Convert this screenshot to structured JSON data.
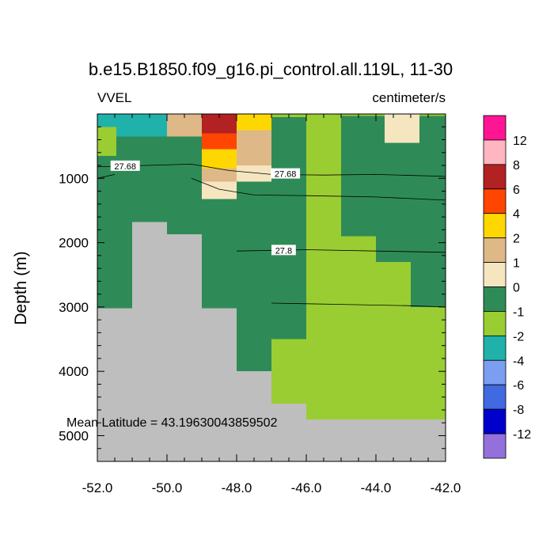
{
  "chart_data": {
    "type": "heatmap",
    "title": "b.e15.B1850.f09_g16.pi_control.all.119L, 11-30",
    "left_label": "VVEL",
    "right_label": "centimeter/s",
    "ylabel": "Depth (m)",
    "xlabel": "",
    "xlim": [
      -52.0,
      -42.0
    ],
    "ylim": [
      5400,
      0
    ],
    "x_ticks": [
      -52.0,
      -50.0,
      -48.0,
      -46.0,
      -44.0,
      -42.0
    ],
    "x_tick_labels": [
      "-52.0",
      "-50.0",
      "-48.0",
      "-46.0",
      "-44.0",
      "-42.0"
    ],
    "y_ticks": [
      1000,
      2000,
      3000,
      4000,
      5000
    ],
    "y_tick_labels": [
      "1000",
      "2000",
      "3000",
      "4000",
      "5000"
    ],
    "annotation": "Mean Latitude = 43.19630043859502",
    "missing_color": "#bebebe",
    "colorbar": {
      "labels": [
        "12",
        "8",
        "6",
        "4",
        "2",
        "1",
        "0",
        "-1",
        "-2",
        "-4",
        "-6",
        "-8",
        "-12"
      ],
      "colors": [
        "#ff1493",
        "#ffb6c1",
        "#b22222",
        "#ff4500",
        "#ffd700",
        "#deb887",
        "#f5e6c0",
        "#2e8b57",
        "#9acd32",
        "#20b2aa",
        "#7b9ef0",
        "#4169e1",
        "#0000cd",
        "#9370db"
      ]
    },
    "cells": [
      {
        "x": [
          -52.0,
          -46.0
        ],
        "y": [
          0,
          5400
        ],
        "v": "0"
      },
      {
        "x": [
          -52.0,
          -51.5
        ],
        "y": [
          0,
          200
        ],
        "v": "-2"
      },
      {
        "x": [
          -51.5,
          -50.0
        ],
        "y": [
          0,
          350
        ],
        "v": "-2"
      },
      {
        "x": [
          -52.0,
          -51.45
        ],
        "y": [
          200,
          650
        ],
        "v": "-1"
      },
      {
        "x": [
          -50.0,
          -49.0
        ],
        "y": [
          0,
          350
        ],
        "v": "2"
      },
      {
        "x": [
          -49.0,
          -48.0
        ],
        "y": [
          0,
          300
        ],
        "v": "8"
      },
      {
        "x": [
          -49.0,
          -48.0
        ],
        "y": [
          300,
          550
        ],
        "v": "6"
      },
      {
        "x": [
          -49.0,
          -48.0
        ],
        "y": [
          550,
          850
        ],
        "v": "4"
      },
      {
        "x": [
          -49.0,
          -48.0
        ],
        "y": [
          850,
          1050
        ],
        "v": "2"
      },
      {
        "x": [
          -49.0,
          -48.0
        ],
        "y": [
          1050,
          1320
        ],
        "v": "1"
      },
      {
        "x": [
          -48.0,
          -47.0
        ],
        "y": [
          0,
          250
        ],
        "v": "4"
      },
      {
        "x": [
          -48.0,
          -47.0
        ],
        "y": [
          250,
          800
        ],
        "v": "2"
      },
      {
        "x": [
          -48.0,
          -47.0
        ],
        "y": [
          800,
          1050
        ],
        "v": "1"
      },
      {
        "x": [
          -47.0,
          -46.0
        ],
        "y": [
          0,
          50
        ],
        "v": "-1"
      },
      {
        "x": [
          -46.0,
          -45.0
        ],
        "y": [
          0,
          50
        ],
        "v": "-1"
      },
      {
        "x": [
          -46.0,
          -45.0
        ],
        "y": [
          50,
          4750
        ],
        "v": "-1"
      },
      {
        "x": [
          -45.0,
          -42.0
        ],
        "y": [
          0,
          30
        ],
        "v": "-1"
      },
      {
        "x": [
          -45.0,
          -42.0
        ],
        "y": [
          30,
          5400
        ],
        "v": "0"
      },
      {
        "x": [
          -43.75,
          -42.75
        ],
        "y": [
          0,
          450
        ],
        "v": "1"
      },
      {
        "x": [
          -45.0,
          -44.0
        ],
        "y": [
          1900,
          4750
        ],
        "v": "-1"
      },
      {
        "x": [
          -44.0,
          -43.0
        ],
        "y": [
          2300,
          4750
        ],
        "v": "-1"
      },
      {
        "x": [
          -43.0,
          -42.0
        ],
        "y": [
          3000,
          4750
        ],
        "v": "-1"
      },
      {
        "x": [
          -47.0,
          -46.0
        ],
        "y": [
          3500,
          4000
        ],
        "v": "-1"
      },
      {
        "x": [
          -48.0,
          -46.0
        ],
        "y": [
          4000,
          4500
        ],
        "v": "-1"
      },
      {
        "x": [
          -51.0,
          -50.0
        ],
        "y": [
          1680,
          5400
        ],
        "v": "missing"
      },
      {
        "x": [
          -50.0,
          -49.0
        ],
        "y": [
          1870,
          5400
        ],
        "v": "missing"
      },
      {
        "x": [
          -52.0,
          -51.0
        ],
        "y": [
          3020,
          5400
        ],
        "v": "missing"
      },
      {
        "x": [
          -49.0,
          -48.0
        ],
        "y": [
          3020,
          5400
        ],
        "v": "missing"
      },
      {
        "x": [
          -48.0,
          -47.0
        ],
        "y": [
          4000,
          5400
        ],
        "v": "missing"
      },
      {
        "x": [
          -47.0,
          -46.0
        ],
        "y": [
          4500,
          5400
        ],
        "v": "missing"
      },
      {
        "x": [
          -46.0,
          -45.0
        ],
        "y": [
          4750,
          5400
        ],
        "v": "missing"
      },
      {
        "x": [
          -45.0,
          -42.0
        ],
        "y": [
          4750,
          5400
        ],
        "v": "missing"
      }
    ],
    "contours": [
      {
        "label": "27.68",
        "points": [
          [
            -52.0,
            820
          ],
          [
            -49.3,
            780
          ],
          [
            -48.2,
            880
          ],
          [
            -47.0,
            940
          ],
          [
            -45.5,
            950
          ],
          [
            -44.0,
            940
          ],
          [
            -42.0,
            970
          ]
        ],
        "label_at": [
          -51.2,
          810
        ]
      },
      {
        "label": "27.68",
        "label_at": [
          -46.6,
          930
        ]
      },
      {
        "label": "",
        "points": [
          [
            -52.0,
            1000
          ],
          [
            -51.5,
            940
          ]
        ]
      },
      {
        "label": "",
        "points": [
          [
            -49.3,
            1000
          ],
          [
            -48.5,
            1170
          ],
          [
            -47.5,
            1260
          ],
          [
            -46.0,
            1270
          ],
          [
            -44.0,
            1290
          ],
          [
            -42.0,
            1340
          ]
        ]
      },
      {
        "label": "27.8",
        "points": [
          [
            -48.0,
            2130
          ],
          [
            -46.0,
            2110
          ],
          [
            -44.0,
            2130
          ],
          [
            -42.0,
            2150
          ]
        ],
        "label_at": [
          -46.65,
          2120
        ]
      },
      {
        "label": "",
        "points": [
          [
            -47.0,
            2940
          ],
          [
            -45.0,
            2960
          ],
          [
            -43.0,
            2980
          ],
          [
            -42.0,
            3000
          ]
        ]
      }
    ]
  }
}
